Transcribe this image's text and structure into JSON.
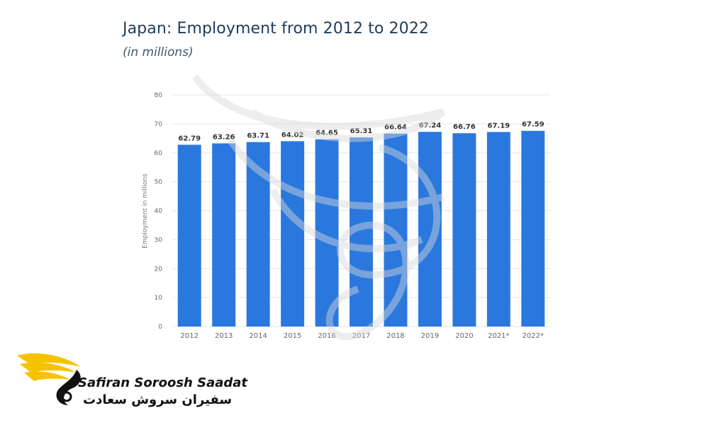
{
  "header": {
    "title": "Japan: Employment from 2012 to 2022",
    "subtitle": "(in millions)"
  },
  "chart_data": {
    "type": "bar",
    "categories": [
      "2012",
      "2013",
      "2014",
      "2015",
      "2016",
      "2017",
      "2018",
      "2019",
      "2020",
      "2021*",
      "2022*"
    ],
    "values": [
      62.79,
      63.26,
      63.71,
      64.02,
      64.65,
      65.31,
      66.64,
      67.24,
      66.76,
      67.19,
      67.59
    ],
    "value_labels": [
      "62.79",
      "63.26",
      "63.71",
      "64.02",
      "64.65",
      "65.31",
      "66.64",
      "67.24",
      "66.76",
      "67.19",
      "67.59"
    ],
    "title": "Japan: Employment from 2012 to 2022",
    "subtitle": "(in millions)",
    "xlabel": "",
    "ylabel": "Employment in millions",
    "ylim": [
      0,
      80
    ],
    "yticks": [
      "0",
      "10",
      "20",
      "30",
      "40",
      "50",
      "60",
      "70",
      "80"
    ],
    "grid": true,
    "legend": "none",
    "bar_color": "#2a78de"
  },
  "logo": {
    "name_en": "Safiran Soroosh Saadat",
    "name_fa": "سفیران سروش سعادت",
    "accent_color": "#f5c200"
  },
  "colors": {
    "title": "#1f3d5c",
    "gridline": "#e6e6e6",
    "axis_text": "#666666"
  }
}
